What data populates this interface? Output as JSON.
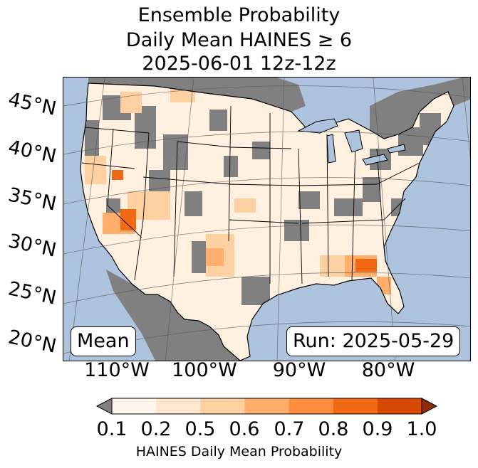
{
  "title": {
    "line1": "Ensemble Probability",
    "line2": "Daily Mean HAINES ≥ 6",
    "line3": "2025-06-01 12z-12z"
  },
  "map": {
    "region": "Contiguous United States",
    "lat_labels": [
      "45°N",
      "40°N",
      "35°N",
      "30°N",
      "25°N",
      "20°N"
    ],
    "lon_labels": [
      "110°W",
      "100°W",
      "90°W",
      "80°W"
    ],
    "colors": {
      "ocean": "#aec3de",
      "no_data_gray": "#808080",
      "background_low": "#fff5eb"
    },
    "higher_probability_areas": [
      {
        "area": "Central Nevada",
        "probability": 0.8
      },
      {
        "area": "Southern Nevada / Arizona / southern California",
        "probability": 0.8
      },
      {
        "area": "Southern New Mexico / west Texas",
        "probability": 0.6
      },
      {
        "area": "Southern Georgia / northern Florida",
        "probability": 0.7
      }
    ]
  },
  "boxes": {
    "left": "Mean",
    "right": "Run: 2025-05-29"
  },
  "colorbar": {
    "label": "HAINES Daily Mean Probability",
    "ticks": [
      "0.1",
      "0.2",
      "0.5",
      "0.6",
      "0.7",
      "0.8",
      "0.9",
      "1.0"
    ],
    "under_color": "#808080",
    "bin_colors": [
      "#fff5eb",
      "#fee6ce",
      "#fdd0a2",
      "#fdae6b",
      "#fd8d3c",
      "#f16913",
      "#d94801"
    ],
    "over_color": "#8c2d04"
  }
}
